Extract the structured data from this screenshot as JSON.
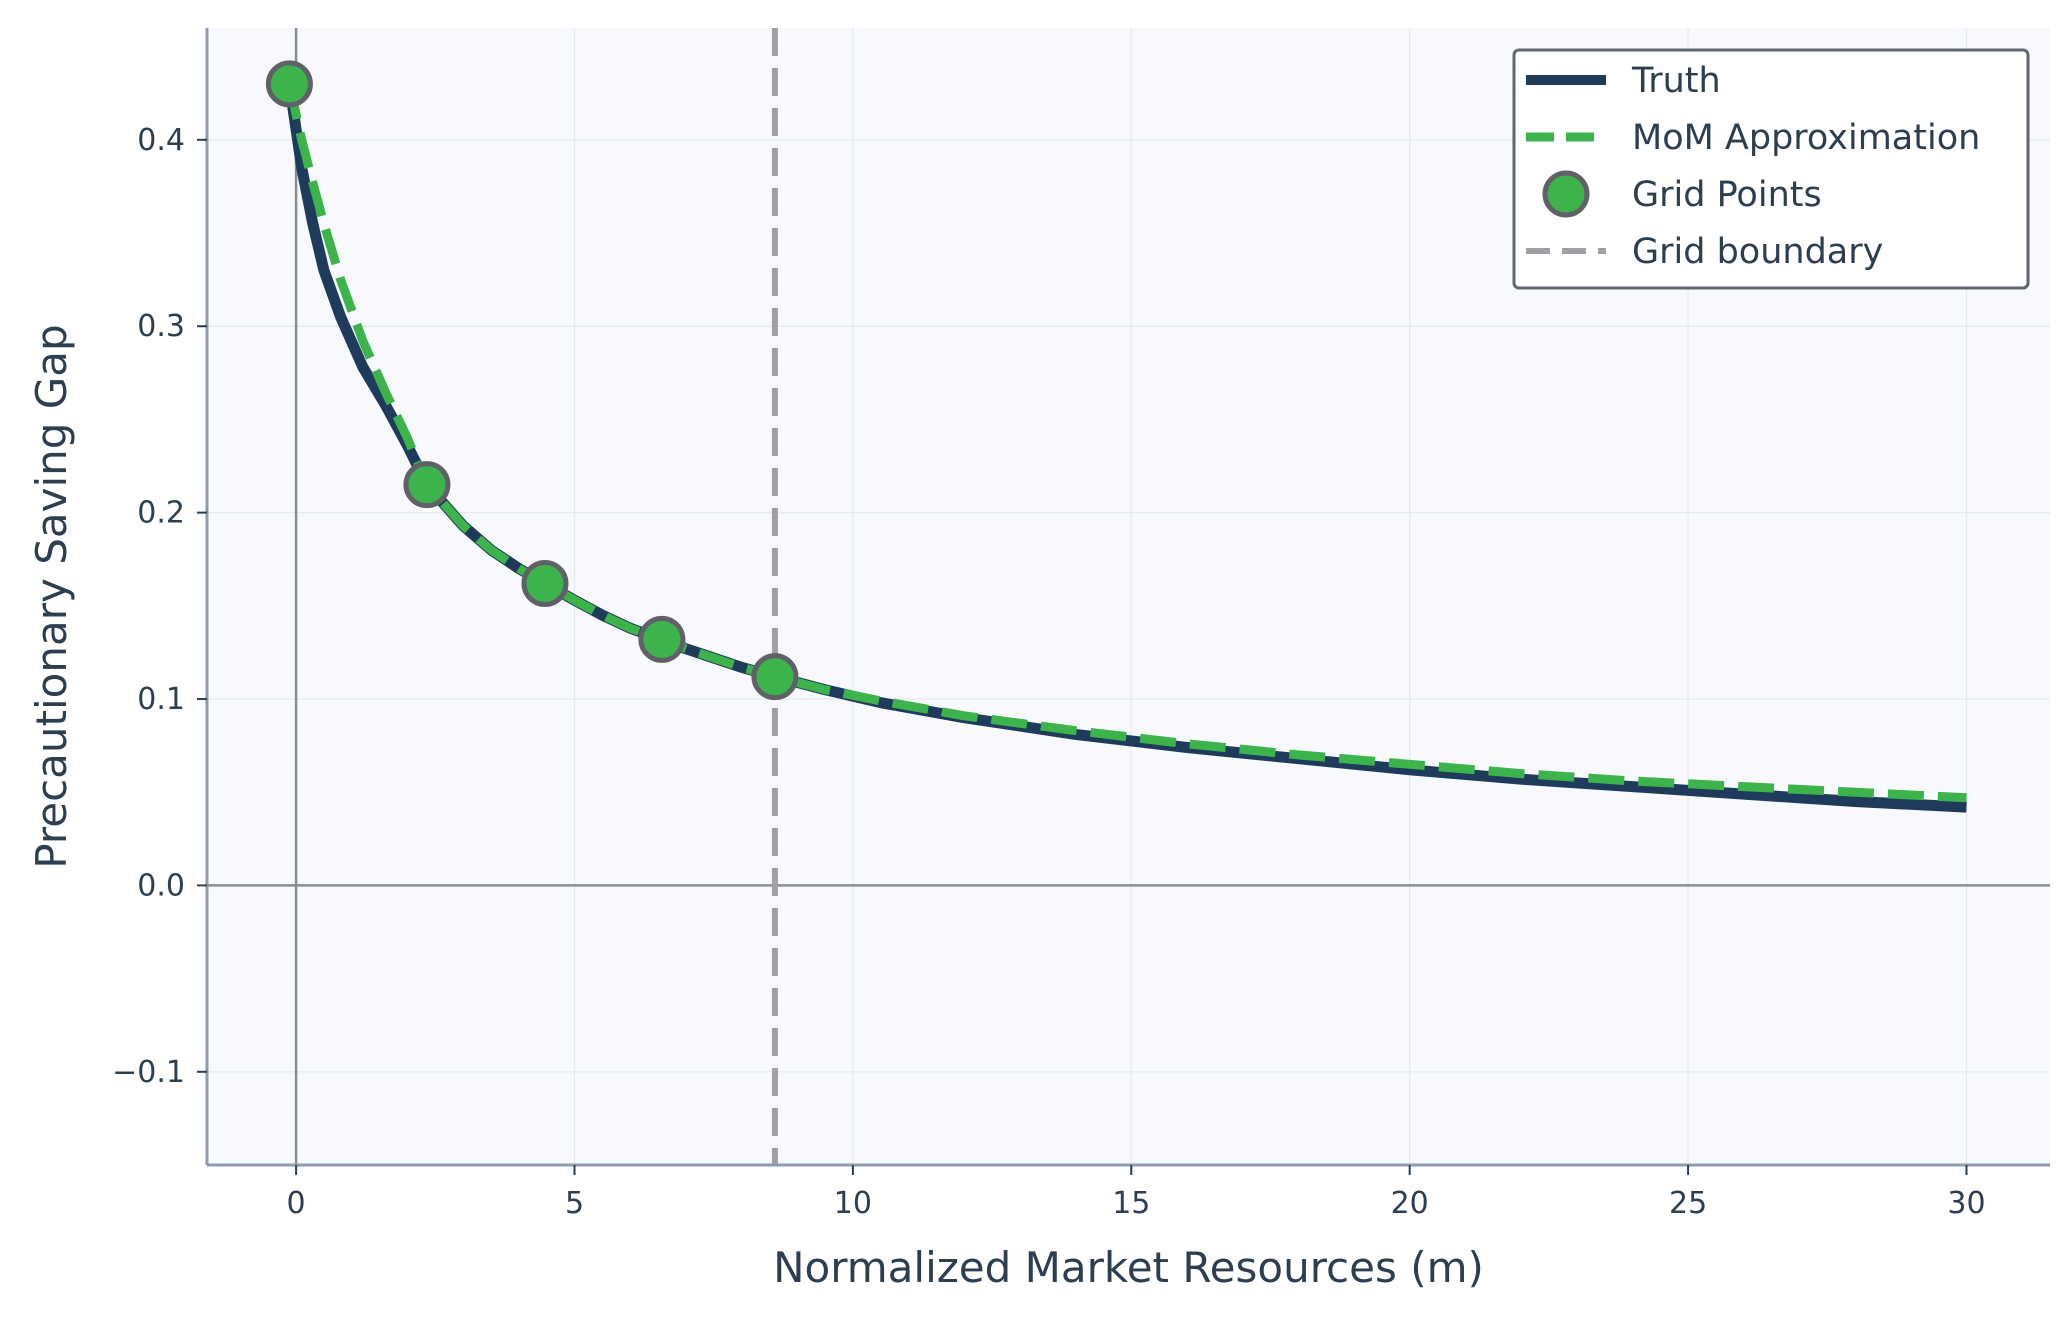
{
  "chart_data": {
    "type": "line",
    "xlabel": "Normalized Market Resources (m)",
    "ylabel": "Precautionary Saving Gap",
    "xlim": [
      -1.6,
      31.5
    ],
    "ylim": [
      -0.15,
      0.46
    ],
    "x_ticks": [
      0,
      5,
      10,
      15,
      20,
      25,
      30
    ],
    "x_tick_labels": [
      "0",
      "5",
      "10",
      "15",
      "20",
      "25",
      "30"
    ],
    "y_ticks": [
      -0.1,
      0.0,
      0.1,
      0.2,
      0.3,
      0.4
    ],
    "y_tick_labels": [
      "−0.1",
      "0.0",
      "0.1",
      "0.2",
      "0.3",
      "0.4"
    ],
    "grid": true,
    "legend_position": "top-right",
    "series": [
      {
        "name": "Truth",
        "style": "solid",
        "color": "#1f3b5c",
        "x": [
          -0.12,
          0.1,
          0.3,
          0.5,
          0.8,
          1.2,
          1.6,
          2.0,
          2.35,
          3.0,
          3.5,
          4.0,
          4.47,
          5.0,
          5.5,
          6.0,
          6.57,
          7.0,
          7.5,
          8.0,
          8.6,
          9.5,
          10.5,
          12.0,
          14.0,
          16.0,
          18.0,
          20.0,
          22.0,
          24.0,
          26.0,
          28.0,
          30.0
        ],
        "y": [
          0.43,
          0.385,
          0.355,
          0.33,
          0.305,
          0.278,
          0.258,
          0.236,
          0.215,
          0.193,
          0.18,
          0.17,
          0.162,
          0.153,
          0.145,
          0.138,
          0.132,
          0.127,
          0.122,
          0.117,
          0.112,
          0.105,
          0.098,
          0.09,
          0.081,
          0.074,
          0.068,
          0.062,
          0.057,
          0.053,
          0.049,
          0.045,
          0.042
        ]
      },
      {
        "name": "MoM Approximation",
        "style": "dashed",
        "color": "#3cb44b",
        "x": [
          -0.12,
          0.1,
          0.3,
          0.5,
          0.8,
          1.2,
          1.6,
          2.0,
          2.35,
          3.0,
          3.5,
          4.0,
          4.47,
          5.0,
          5.5,
          6.0,
          6.57,
          7.0,
          7.5,
          8.0,
          8.6,
          9.5,
          10.5,
          12.0,
          14.0,
          16.0,
          18.0,
          20.0,
          22.0,
          24.0,
          26.0,
          28.0,
          30.0
        ],
        "y": [
          0.43,
          0.4,
          0.377,
          0.355,
          0.325,
          0.292,
          0.265,
          0.24,
          0.215,
          0.193,
          0.18,
          0.17,
          0.162,
          0.153,
          0.145,
          0.138,
          0.132,
          0.127,
          0.122,
          0.117,
          0.112,
          0.105,
          0.099,
          0.091,
          0.083,
          0.076,
          0.07,
          0.065,
          0.06,
          0.056,
          0.053,
          0.05,
          0.047
        ]
      },
      {
        "name": "Grid Points",
        "style": "markers",
        "color": "#3cb44b",
        "edge_color": "#606068",
        "x": [
          -0.12,
          2.35,
          4.47,
          6.57,
          8.6
        ],
        "y": [
          0.43,
          0.215,
          0.162,
          0.132,
          0.112
        ]
      },
      {
        "name": "Grid boundary",
        "style": "vline-dashed",
        "color": "#a0a0a4",
        "x": [
          8.6
        ]
      }
    ],
    "reference_lines": {
      "x": 0,
      "y": 0
    }
  }
}
